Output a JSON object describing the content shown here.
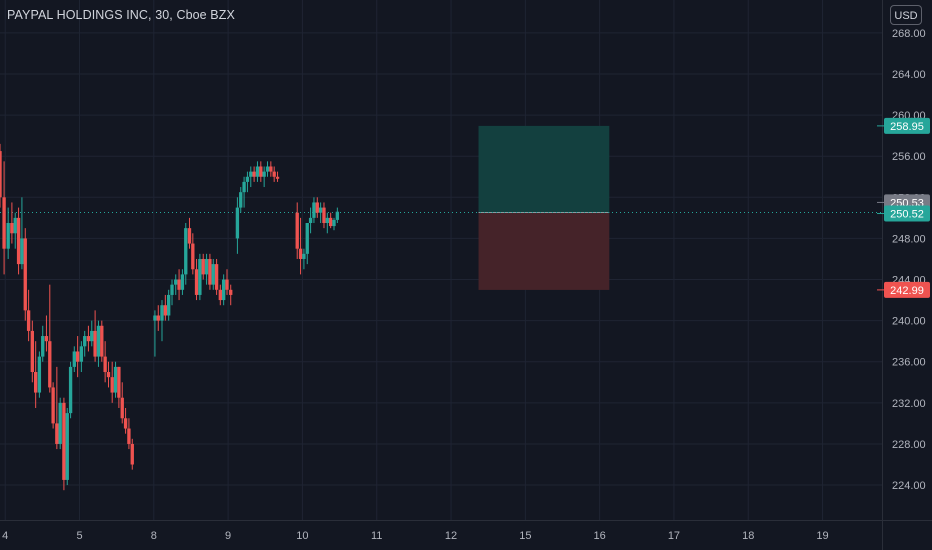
{
  "header": {
    "title": "PAYPAL HOLDINGS INC, 30, Cboe BZX",
    "currency": "USD"
  },
  "colors": {
    "background": "#131722",
    "grid": "#1f2433",
    "text": "#b2b5be",
    "up": "#26a69a",
    "down": "#ef5350",
    "target_zone": "#13403f",
    "stop_zone": "#452329",
    "current_price_label": "#26a69a",
    "last_price_label": "#787b86"
  },
  "chart_data": {
    "type": "candlestick",
    "ylim": [
      220.6,
      271.2
    ],
    "y_ticks": [
      "224.00",
      "228.00",
      "232.00",
      "236.00",
      "240.00",
      "244.00",
      "248.00",
      "252.00",
      "256.00",
      "260.00",
      "264.00",
      "268.00"
    ],
    "x_ticks": [
      {
        "label": "4",
        "x": 0.0
      },
      {
        "label": "5",
        "x": 1.0
      },
      {
        "label": "8",
        "x": 2.0
      },
      {
        "label": "9",
        "x": 3.0
      },
      {
        "label": "10",
        "x": 4.0
      },
      {
        "label": "11",
        "x": 5.0
      },
      {
        "label": "12",
        "x": 6.0
      },
      {
        "label": "15",
        "x": 7.0
      },
      {
        "label": "16",
        "x": 8.0
      },
      {
        "label": "17",
        "x": 9.0
      },
      {
        "label": "18",
        "x": 10.0
      },
      {
        "label": "19",
        "x": 11.0
      }
    ],
    "xlim": [
      -0.07,
      11.8
    ],
    "bar_width": 0.045,
    "candles": [
      [
        -0.07,
        256.5,
        257.2,
        251.0,
        252.0
      ],
      [
        -0.015,
        252.0,
        255.5,
        244.5,
        247.0
      ],
      [
        0.04,
        247.0,
        251.0,
        246.0,
        249.5
      ],
      [
        0.09,
        249.5,
        251.5,
        247.5,
        248.5
      ],
      [
        0.135,
        248.5,
        250.5,
        247.0,
        250.0
      ],
      [
        0.18,
        250.0,
        251.0,
        244.5,
        245.5
      ],
      [
        0.225,
        245.5,
        252.0,
        245.0,
        248.0
      ],
      [
        0.27,
        248.0,
        249.0,
        240.0,
        241.0
      ],
      [
        0.315,
        241.0,
        243.0,
        238.0,
        239.0
      ],
      [
        0.365,
        239.0,
        240.0,
        234.0,
        235.0
      ],
      [
        0.41,
        235.0,
        238.0,
        231.5,
        233.0
      ],
      [
        0.46,
        233.0,
        237.0,
        232.5,
        236.5
      ],
      [
        0.505,
        236.5,
        239.5,
        236.0,
        238.5
      ],
      [
        0.555,
        238.5,
        240.5,
        237.0,
        238.0
      ],
      [
        0.6,
        238.0,
        243.5,
        233.0,
        233.5
      ],
      [
        0.645,
        233.5,
        234.0,
        229.5,
        230.0
      ],
      [
        0.695,
        230.0,
        235.5,
        227.5,
        228.0
      ],
      [
        0.74,
        228.0,
        232.5,
        227.5,
        232.0
      ],
      [
        0.79,
        232.0,
        232.5,
        223.5,
        224.5
      ],
      [
        0.835,
        224.5,
        231.5,
        224.0,
        231.0
      ],
      [
        0.88,
        231.0,
        236.0,
        230.5,
        235.5
      ],
      [
        0.93,
        235.5,
        237.5,
        235.0,
        237.0
      ],
      [
        0.975,
        237.0,
        238.5,
        234.5,
        236.0
      ],
      [
        1.025,
        236.0,
        238.0,
        235.0,
        237.5
      ],
      [
        1.07,
        237.5,
        239.0,
        236.5,
        238.5
      ],
      [
        1.12,
        238.5,
        239.5,
        237.0,
        238.0
      ],
      [
        1.165,
        238.0,
        240.0,
        237.5,
        239.0
      ],
      [
        1.21,
        239.0,
        241.0,
        236.0,
        236.5
      ],
      [
        1.255,
        236.5,
        240.0,
        235.5,
        239.5
      ],
      [
        1.3,
        239.5,
        240.0,
        236.0,
        236.5
      ],
      [
        1.345,
        236.5,
        238.0,
        234.0,
        235.0
      ],
      [
        1.39,
        235.0,
        236.0,
        233.5,
        234.5
      ],
      [
        1.44,
        234.5,
        236.0,
        232.0,
        233.0
      ],
      [
        1.485,
        233.0,
        236.0,
        232.5,
        235.5
      ],
      [
        1.53,
        235.5,
        235.5,
        231.5,
        232.5
      ],
      [
        1.575,
        232.5,
        234.0,
        230.0,
        230.5
      ],
      [
        1.62,
        230.5,
        231.5,
        229.0,
        229.5
      ],
      [
        1.665,
        229.5,
        230.5,
        227.5,
        228.0
      ],
      [
        1.71,
        228.0,
        228.5,
        225.5,
        226.0
      ],
      [
        2.015,
        240.0,
        241.0,
        236.5,
        240.5
      ],
      [
        2.06,
        240.5,
        241.5,
        239.0,
        240.0
      ],
      [
        2.11,
        240.0,
        242.0,
        238.0,
        241.5
      ],
      [
        2.155,
        241.5,
        242.5,
        240.0,
        240.5
      ],
      [
        2.2,
        240.5,
        243.0,
        240.0,
        242.5
      ],
      [
        2.245,
        242.5,
        244.0,
        241.5,
        243.5
      ],
      [
        2.295,
        243.5,
        244.5,
        242.5,
        244.0
      ],
      [
        2.34,
        244.0,
        245.0,
        242.0,
        243.0
      ],
      [
        2.385,
        243.0,
        245.0,
        242.5,
        244.5
      ],
      [
        2.43,
        244.5,
        249.5,
        243.5,
        249.0
      ],
      [
        2.48,
        249.0,
        250.0,
        247.0,
        247.5
      ],
      [
        2.525,
        247.5,
        248.5,
        244.5,
        245.0
      ],
      [
        2.575,
        245.0,
        246.0,
        242.0,
        242.5
      ],
      [
        2.62,
        242.5,
        246.5,
        242.0,
        246.0
      ],
      [
        2.665,
        246.0,
        246.5,
        244.0,
        244.5
      ],
      [
        2.71,
        244.5,
        246.5,
        243.5,
        246.0
      ],
      [
        2.755,
        246.0,
        246.5,
        243.0,
        243.5
      ],
      [
        2.8,
        243.5,
        246.0,
        243.0,
        245.5
      ],
      [
        2.845,
        245.5,
        246.0,
        242.5,
        243.0
      ],
      [
        2.895,
        243.0,
        243.5,
        241.5,
        242.0
      ],
      [
        2.94,
        242.0,
        244.5,
        241.5,
        244.0
      ],
      [
        2.985,
        244.0,
        245.0,
        242.5,
        243.0
      ],
      [
        3.035,
        243.0,
        243.5,
        241.5,
        242.5
      ],
      [
        3.125,
        248.0,
        252.0,
        246.5,
        251.0
      ],
      [
        3.17,
        251.0,
        253.0,
        250.5,
        252.5
      ],
      [
        3.215,
        252.5,
        254.0,
        251.0,
        253.5
      ],
      [
        3.26,
        253.5,
        254.5,
        252.5,
        254.0
      ],
      [
        3.305,
        254.0,
        255.0,
        253.0,
        254.5
      ],
      [
        3.35,
        254.5,
        255.0,
        253.5,
        254.0
      ],
      [
        3.395,
        254.0,
        255.5,
        253.5,
        255.0
      ],
      [
        3.44,
        255.0,
        255.5,
        253.5,
        254.0
      ],
      [
        3.485,
        254.0,
        255.0,
        253.0,
        254.5
      ],
      [
        3.53,
        254.5,
        255.5,
        254.0,
        255.0
      ],
      [
        3.575,
        255.0,
        255.5,
        254.0,
        254.5
      ],
      [
        3.62,
        254.5,
        255.0,
        253.5,
        254.0
      ],
      [
        3.665,
        254.0,
        254.5,
        253.5,
        253.8
      ],
      [
        3.93,
        250.5,
        251.5,
        246.0,
        247.0
      ],
      [
        3.975,
        247.0,
        250.0,
        244.5,
        246.0
      ],
      [
        4.02,
        246.0,
        247.0,
        245.0,
        246.5
      ],
      [
        4.065,
        246.5,
        249.5,
        245.5,
        249.5
      ],
      [
        4.11,
        249.5,
        251.0,
        248.5,
        250.0
      ],
      [
        4.155,
        250.0,
        252.0,
        249.5,
        251.5
      ],
      [
        4.2,
        251.5,
        252.0,
        250.0,
        250.5
      ],
      [
        4.245,
        250.5,
        251.5,
        249.5,
        251.0
      ],
      [
        4.29,
        251.0,
        251.5,
        249.0,
        249.5
      ],
      [
        4.335,
        249.5,
        250.5,
        248.5,
        250.0
      ],
      [
        4.38,
        250.0,
        250.5,
        249.0,
        249.2
      ],
      [
        4.425,
        249.2,
        250.0,
        248.8,
        249.8
      ],
      [
        4.47,
        249.8,
        251.0,
        249.5,
        250.6
      ]
    ],
    "position": {
      "x_start": 6.37,
      "x_end": 8.13,
      "entry": 250.52,
      "target": 258.95,
      "stop": 242.99
    },
    "price_labels": [
      {
        "value": 258.95,
        "text": "258.95",
        "kind": "target"
      },
      {
        "value": 250.53,
        "text": "250.53",
        "kind": "last"
      },
      {
        "value": 250.52,
        "text": "250.52",
        "kind": "current"
      },
      {
        "value": 242.99,
        "text": "242.99",
        "kind": "stop"
      }
    ]
  }
}
